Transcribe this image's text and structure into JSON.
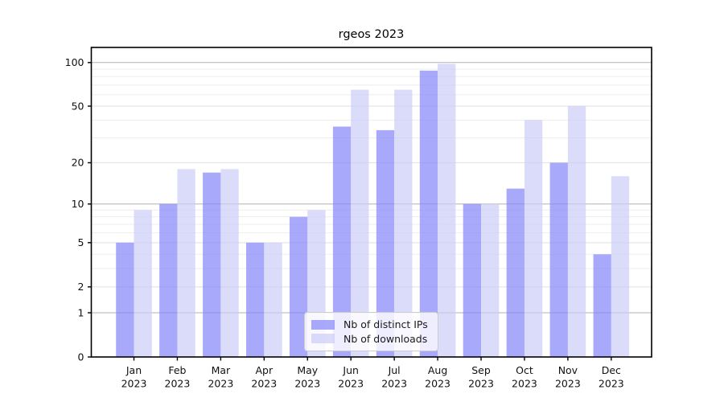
{
  "chart_data": {
    "type": "bar",
    "title": "rgeos 2023",
    "categories": [
      "Jan 2023",
      "Feb 2023",
      "Mar 2023",
      "Apr 2023",
      "May 2023",
      "Jun 2023",
      "Jul 2023",
      "Aug 2023",
      "Sep 2023",
      "Oct 2023",
      "Nov 2023",
      "Dec 2023"
    ],
    "series": [
      {
        "name": "Nb of distinct IPs",
        "color": "rgba(131,131,250,0.69)",
        "values": [
          5,
          10,
          17,
          5,
          8,
          36,
          34,
          88,
          10,
          13,
          20,
          4
        ]
      },
      {
        "name": "Nb of downloads",
        "color": "rgba(204,204,248,0.70)",
        "values": [
          9,
          18,
          18,
          5,
          9,
          65,
          65,
          98,
          10,
          40,
          50,
          16
        ]
      }
    ],
    "xlabel": "",
    "ylabel": "",
    "yscale": "log1p",
    "ylim": [
      0,
      127
    ],
    "yticks": [
      0,
      1,
      2,
      5,
      10,
      20,
      50,
      100
    ],
    "decade_gridlines": [
      1,
      10,
      100
    ],
    "minor_gridlines": [
      3,
      4,
      6,
      7,
      8,
      9,
      30,
      40,
      60,
      70,
      80,
      90
    ],
    "grid": true,
    "legend_position": "inside-bottom-center",
    "colors": {
      "grid_decade": "#b2b2b2",
      "grid_labeled": "#dfdfdf",
      "grid_minor": "#ededed",
      "spine": "#000000",
      "tick_label": "#111111"
    }
  }
}
